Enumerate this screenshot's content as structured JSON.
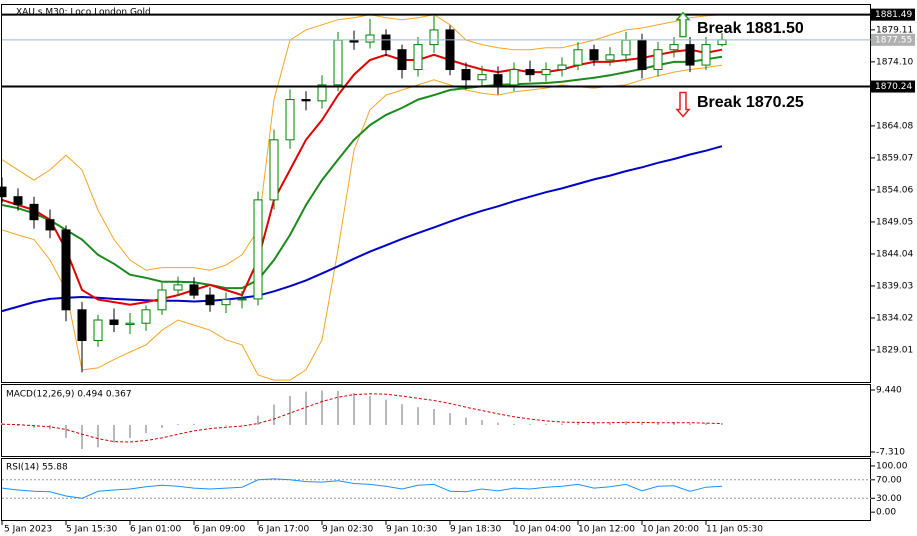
{
  "chart_data": [
    {
      "type": "candlestick",
      "title": "XAU.s,M30: Loco London Gold",
      "categories": [
        "5 Jan 2023",
        null,
        null,
        null,
        "5 Jan 15:30",
        null,
        null,
        null,
        "6 Jan 01:00",
        null,
        null,
        null,
        "6 Jan 09:00",
        null,
        null,
        null,
        "6 Jan 17:00",
        null,
        null,
        null,
        "9 Jan 02:30",
        null,
        null,
        null,
        "9 Jan 10:30",
        null,
        null,
        null,
        "9 Jan 18:30",
        null,
        null,
        null,
        "10 Jan 04:00",
        null,
        null,
        null,
        "10 Jan 12:00",
        null,
        null,
        null,
        "10 Jan 20:00",
        null,
        null,
        null,
        "11 Jan 05:30",
        null
      ],
      "open": [
        1854.5,
        1853.0,
        1851.8,
        1849.4,
        1847.8,
        1835.3,
        1830.5,
        1833.7,
        1833.0,
        1833.2,
        1835.3,
        1838.4,
        1839.2,
        1837.6,
        1836.1,
        1836.9,
        1837.0,
        1852.5,
        1861.9,
        1868.2,
        1868.0,
        1870.5,
        1877.5,
        1877.2,
        1878.3,
        1876.0,
        1872.9,
        1876.8,
        1879.1,
        1872.9,
        1871.3,
        1872.1,
        1870.5,
        1872.9,
        1872.1,
        1872.9,
        1873.6,
        1876.0,
        1874.4,
        1875.2,
        1877.5,
        1872.9,
        1876.0,
        1876.8,
        1873.6,
        1876.8
      ],
      "high": [
        1856.0,
        1854.3,
        1853.0,
        1851.0,
        1848.5,
        1836.5,
        1834.5,
        1835.5,
        1834.8,
        1836.0,
        1839.5,
        1840.5,
        1840.4,
        1838.8,
        1838.0,
        1838.2,
        1853.8,
        1863.5,
        1869.8,
        1869.5,
        1872.0,
        1878.8,
        1879.0,
        1880.8,
        1879.2,
        1876.8,
        1878.0,
        1881.3,
        1879.8,
        1874.0,
        1873.5,
        1873.4,
        1874.0,
        1874.3,
        1874.0,
        1874.8,
        1877.2,
        1876.8,
        1876.4,
        1878.8,
        1878.5,
        1877.2,
        1878.0,
        1878.0,
        1878.0,
        1878.6
      ],
      "low": [
        1852.0,
        1850.8,
        1848.0,
        1846.5,
        1833.5,
        1825.5,
        1829.5,
        1831.8,
        1831.5,
        1832.0,
        1834.5,
        1837.5,
        1837.0,
        1835.0,
        1834.8,
        1835.5,
        1836.0,
        1851.0,
        1860.5,
        1866.5,
        1866.8,
        1869.5,
        1876.0,
        1876.2,
        1875.0,
        1871.5,
        1871.8,
        1875.5,
        1872.0,
        1869.8,
        1870.3,
        1869.0,
        1869.5,
        1871.0,
        1871.0,
        1871.8,
        1872.8,
        1873.5,
        1873.5,
        1874.0,
        1871.5,
        1871.8,
        1874.8,
        1872.5,
        1872.8,
        1876.5
      ],
      "close": [
        1853.0,
        1851.8,
        1849.4,
        1847.8,
        1835.3,
        1830.5,
        1833.7,
        1833.0,
        1833.2,
        1835.3,
        1838.4,
        1839.2,
        1837.6,
        1836.1,
        1836.9,
        1837.0,
        1852.5,
        1861.9,
        1868.2,
        1868.0,
        1870.5,
        1877.5,
        1877.2,
        1878.3,
        1876.0,
        1872.9,
        1876.8,
        1879.1,
        1872.9,
        1871.3,
        1872.1,
        1870.5,
        1872.9,
        1872.1,
        1872.9,
        1873.6,
        1876.0,
        1874.4,
        1875.2,
        1877.5,
        1872.9,
        1876.0,
        1876.8,
        1873.6,
        1876.8,
        1877.55
      ],
      "up_color": "#008000",
      "down_color": "#000000",
      "series": [
        {
          "color": "#f5a623",
          "width": 1,
          "values": [
            1858.8,
            1857.2,
            1855.6,
            1857.2,
            1859.5,
            1857.2,
            1850.9,
            1846.3,
            1843.1,
            1841.5,
            1841.9,
            1841.9,
            1841.9,
            1841.5,
            1842.3,
            1843.9,
            1847.8,
            1868.2,
            1877.5,
            1879.1,
            1879.9,
            1880.7,
            1881.0,
            1881.5,
            1881.0,
            1880.7,
            1881.0,
            1881.5,
            1879.9,
            1877.5,
            1876.8,
            1876.3,
            1876.0,
            1876.0,
            1876.3,
            1876.3,
            1876.9,
            1877.5,
            1878.3,
            1879.1,
            1879.4,
            1879.9,
            1880.4,
            1881.0,
            1881.3,
            1881.5
          ]
        },
        {
          "color": "#f5a623",
          "width": 1,
          "values": [
            1847.8,
            1847.0,
            1846.3,
            1843.1,
            1838.4,
            1825.9,
            1826.2,
            1827.5,
            1828.7,
            1829.8,
            1832.1,
            1833.7,
            1832.9,
            1832.1,
            1830.6,
            1829.8,
            1825.1,
            1824.3,
            1824.3,
            1825.9,
            1830.6,
            1844.7,
            1860.3,
            1866.6,
            1868.9,
            1869.7,
            1870.5,
            1871.3,
            1870.5,
            1869.7,
            1869.2,
            1868.9,
            1869.4,
            1869.7,
            1870.0,
            1870.5,
            1870.2,
            1870.0,
            1870.3,
            1870.5,
            1871.3,
            1871.9,
            1872.5,
            1872.9,
            1873.2,
            1873.6
          ]
        },
        {
          "color": "#0000c8",
          "width": 2,
          "values": [
            1835.1,
            1835.8,
            1836.5,
            1837.0,
            1837.2,
            1837.3,
            1837.2,
            1837.0,
            1836.9,
            1836.8,
            1836.7,
            1836.7,
            1836.6,
            1836.7,
            1836.9,
            1837.2,
            1837.5,
            1838.2,
            1839.0,
            1839.9,
            1841.0,
            1842.1,
            1843.3,
            1844.4,
            1845.4,
            1846.4,
            1847.3,
            1848.2,
            1849.1,
            1850.0,
            1850.8,
            1851.5,
            1852.3,
            1853.0,
            1853.7,
            1854.3,
            1855.0,
            1855.7,
            1856.3,
            1857.0,
            1857.6,
            1858.3,
            1858.9,
            1859.6,
            1860.2,
            1860.9
          ]
        },
        {
          "color": "#1a8a1a",
          "width": 2,
          "values": [
            1851.7,
            1851.2,
            1850.4,
            1849.3,
            1847.8,
            1846.3,
            1843.9,
            1842.5,
            1840.8,
            1840.3,
            1839.7,
            1839.7,
            1839.6,
            1839.2,
            1838.7,
            1838.7,
            1840.0,
            1843.1,
            1847.0,
            1851.7,
            1855.6,
            1858.8,
            1861.9,
            1864.2,
            1865.8,
            1866.9,
            1868.2,
            1868.9,
            1869.7,
            1870.0,
            1870.3,
            1870.5,
            1870.6,
            1870.7,
            1870.8,
            1871.0,
            1871.3,
            1871.6,
            1872.0,
            1872.5,
            1873.0,
            1873.6,
            1874.1,
            1874.1,
            1874.5,
            1874.9
          ]
        },
        {
          "color": "#e00000",
          "width": 2,
          "values": [
            1852.5,
            1851.7,
            1850.9,
            1849.4,
            1844.7,
            1838.4,
            1836.9,
            1836.5,
            1836.1,
            1836.5,
            1837.0,
            1837.6,
            1838.4,
            1839.2,
            1838.4,
            1837.6,
            1843.1,
            1852.5,
            1857.2,
            1861.9,
            1865.0,
            1868.9,
            1872.1,
            1874.4,
            1875.2,
            1874.4,
            1874.4,
            1875.2,
            1874.4,
            1873.6,
            1872.9,
            1872.5,
            1872.9,
            1872.5,
            1872.5,
            1872.9,
            1873.6,
            1874.1,
            1874.1,
            1874.4,
            1874.7,
            1875.2,
            1875.7,
            1876.0,
            1875.5,
            1876.0
          ]
        }
      ],
      "ylim": [
        1824.0,
        1883.0
      ],
      "yticks": [
        1829.01,
        1834.02,
        1839.03,
        1844.04,
        1849.05,
        1854.06,
        1859.07,
        1864.08,
        {
          "value": 1874.1,
          "label": "1874.10"
        },
        1879.11
      ],
      "price_lines": [
        {
          "value": 1881.49,
          "color": "#000000",
          "width": 2,
          "tag_fill": "#000000"
        },
        {
          "value": 1877.55,
          "color": "#9ab8d8",
          "width": 1,
          "tag_fill": "#b0b0b0"
        },
        {
          "value": 1870.24,
          "color": "#000000",
          "width": 2,
          "tag_fill": "#000000"
        }
      ],
      "annotations": [
        {
          "text": "Break 1881.50",
          "direction": "up",
          "color": "#2e9e2e"
        },
        {
          "text": "Break 1870.25",
          "direction": "down",
          "color": "#e02020"
        }
      ]
    },
    {
      "type": "macd",
      "title": "MACD(12,26,9) 0.494 0.367",
      "values": [
        0.5,
        -0.3,
        -0.8,
        -1.2,
        -3.5,
        -6.5,
        -6.0,
        -4.8,
        -3.5,
        -2.2,
        -0.8,
        0.2,
        0.3,
        -0.1,
        -0.2,
        0.0,
        2.5,
        5.5,
        7.8,
        9.0,
        9.3,
        9.2,
        8.6,
        7.8,
        6.8,
        5.6,
        4.8,
        4.3,
        3.2,
        2.0,
        1.3,
        0.6,
        0.3,
        0.2,
        0.2,
        0.4,
        0.7,
        0.6,
        0.7,
        1.0,
        0.5,
        0.6,
        0.8,
        0.4,
        0.5,
        0.494
      ],
      "signal": [
        0.2,
        0.1,
        -0.2,
        -0.5,
        -1.2,
        -2.5,
        -3.7,
        -4.5,
        -4.6,
        -4.2,
        -3.5,
        -2.5,
        -1.6,
        -1.0,
        -0.6,
        -0.3,
        0.4,
        1.6,
        3.2,
        4.8,
        6.3,
        7.5,
        8.2,
        8.4,
        8.3,
        7.8,
        7.2,
        6.6,
        5.8,
        4.8,
        3.9,
        3.0,
        2.2,
        1.6,
        1.1,
        0.8,
        0.7,
        0.6,
        0.6,
        0.7,
        0.7,
        0.6,
        0.6,
        0.6,
        0.5,
        0.367
      ],
      "color": "#b8b8b8",
      "signal_color": "#d00000",
      "ylim": [
        -8.39,
        10.79
      ],
      "yticks": [
        {
          "value": 9.44,
          "label": "9.440"
        },
        {
          "value": -7.31,
          "label": "-7.310"
        }
      ]
    },
    {
      "type": "rsi",
      "title": "RSI(14) 55.88",
      "values": [
        52,
        48,
        45,
        44,
        35,
        30,
        45,
        48,
        50,
        55,
        58,
        56,
        52,
        50,
        52,
        54,
        70,
        72,
        70,
        66,
        65,
        68,
        62,
        60,
        56,
        50,
        58,
        60,
        45,
        44,
        50,
        46,
        52,
        50,
        54,
        56,
        60,
        52,
        55,
        60,
        46,
        56,
        57,
        45,
        54,
        55.88
      ],
      "color": "#1e90ff",
      "ylim": [
        -17,
        115
      ],
      "yticks": [
        {
          "value": 100,
          "label": "100.00"
        },
        {
          "value": 70,
          "label": "70.00"
        },
        {
          "value": 30,
          "label": "30.00"
        },
        {
          "value": 0,
          "label": "0.00"
        }
      ],
      "levels": [
        70,
        30
      ]
    }
  ]
}
